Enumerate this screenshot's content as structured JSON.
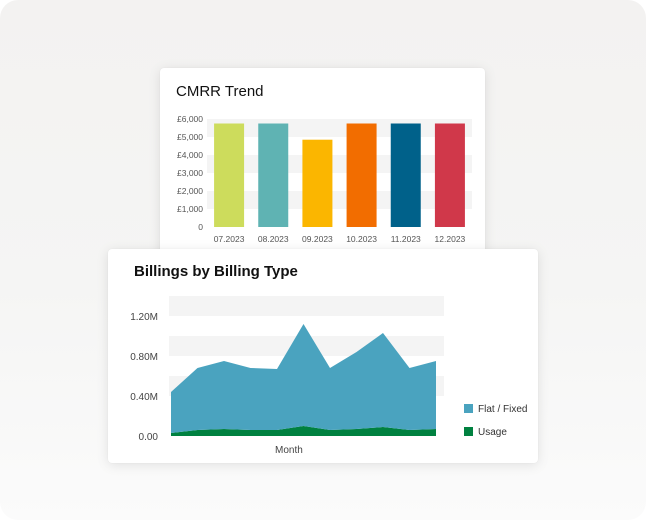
{
  "cmrr": {
    "title": "CMRR Trend",
    "chart_data": {
      "type": "bar",
      "title": "CMRR Trend",
      "categories": [
        "07.2023",
        "08.2023",
        "09.2023",
        "10.2023",
        "11.2023",
        "12.2023"
      ],
      "values": [
        5750,
        5750,
        4850,
        5750,
        5750,
        5750
      ],
      "colors": [
        "#cddc5c",
        "#5fb3b3",
        "#fbb600",
        "#f26d00",
        "#00618a",
        "#d0384a"
      ],
      "ylim": [
        0,
        6000
      ],
      "yticks": [
        0,
        1000,
        2000,
        3000,
        4000,
        5000,
        6000
      ],
      "ytick_labels": [
        "0",
        "£1,000",
        "£2,000",
        "£3,000",
        "£4,000",
        "£5,000",
        "£6,000"
      ],
      "grid": "alternating bands"
    }
  },
  "billing": {
    "title": "Billings by Billing Type",
    "chart_data": {
      "type": "area",
      "title": "Billings by Billing Type",
      "xlabel": "Month",
      "stacked": true,
      "points": 11,
      "series": [
        {
          "name": "Usage",
          "color": "#008140",
          "values": [
            0.03,
            0.06,
            0.07,
            0.06,
            0.06,
            0.1,
            0.06,
            0.07,
            0.09,
            0.06,
            0.07
          ]
        },
        {
          "name": "Flat / Fixed",
          "color": "#4aa3bf",
          "values": [
            0.41,
            0.62,
            0.68,
            0.62,
            0.61,
            1.02,
            0.62,
            0.77,
            0.94,
            0.62,
            0.68
          ]
        }
      ],
      "ylim": [
        0,
        1.4
      ],
      "yticks": [
        0,
        0.4,
        0.8,
        1.2
      ],
      "ytick_labels": [
        "0.00",
        "0.40M",
        "0.80M",
        "1.20M"
      ],
      "legend_position": "right",
      "legend": [
        "Flat / Fixed",
        "Usage"
      ],
      "grid": "alternating bands"
    }
  }
}
